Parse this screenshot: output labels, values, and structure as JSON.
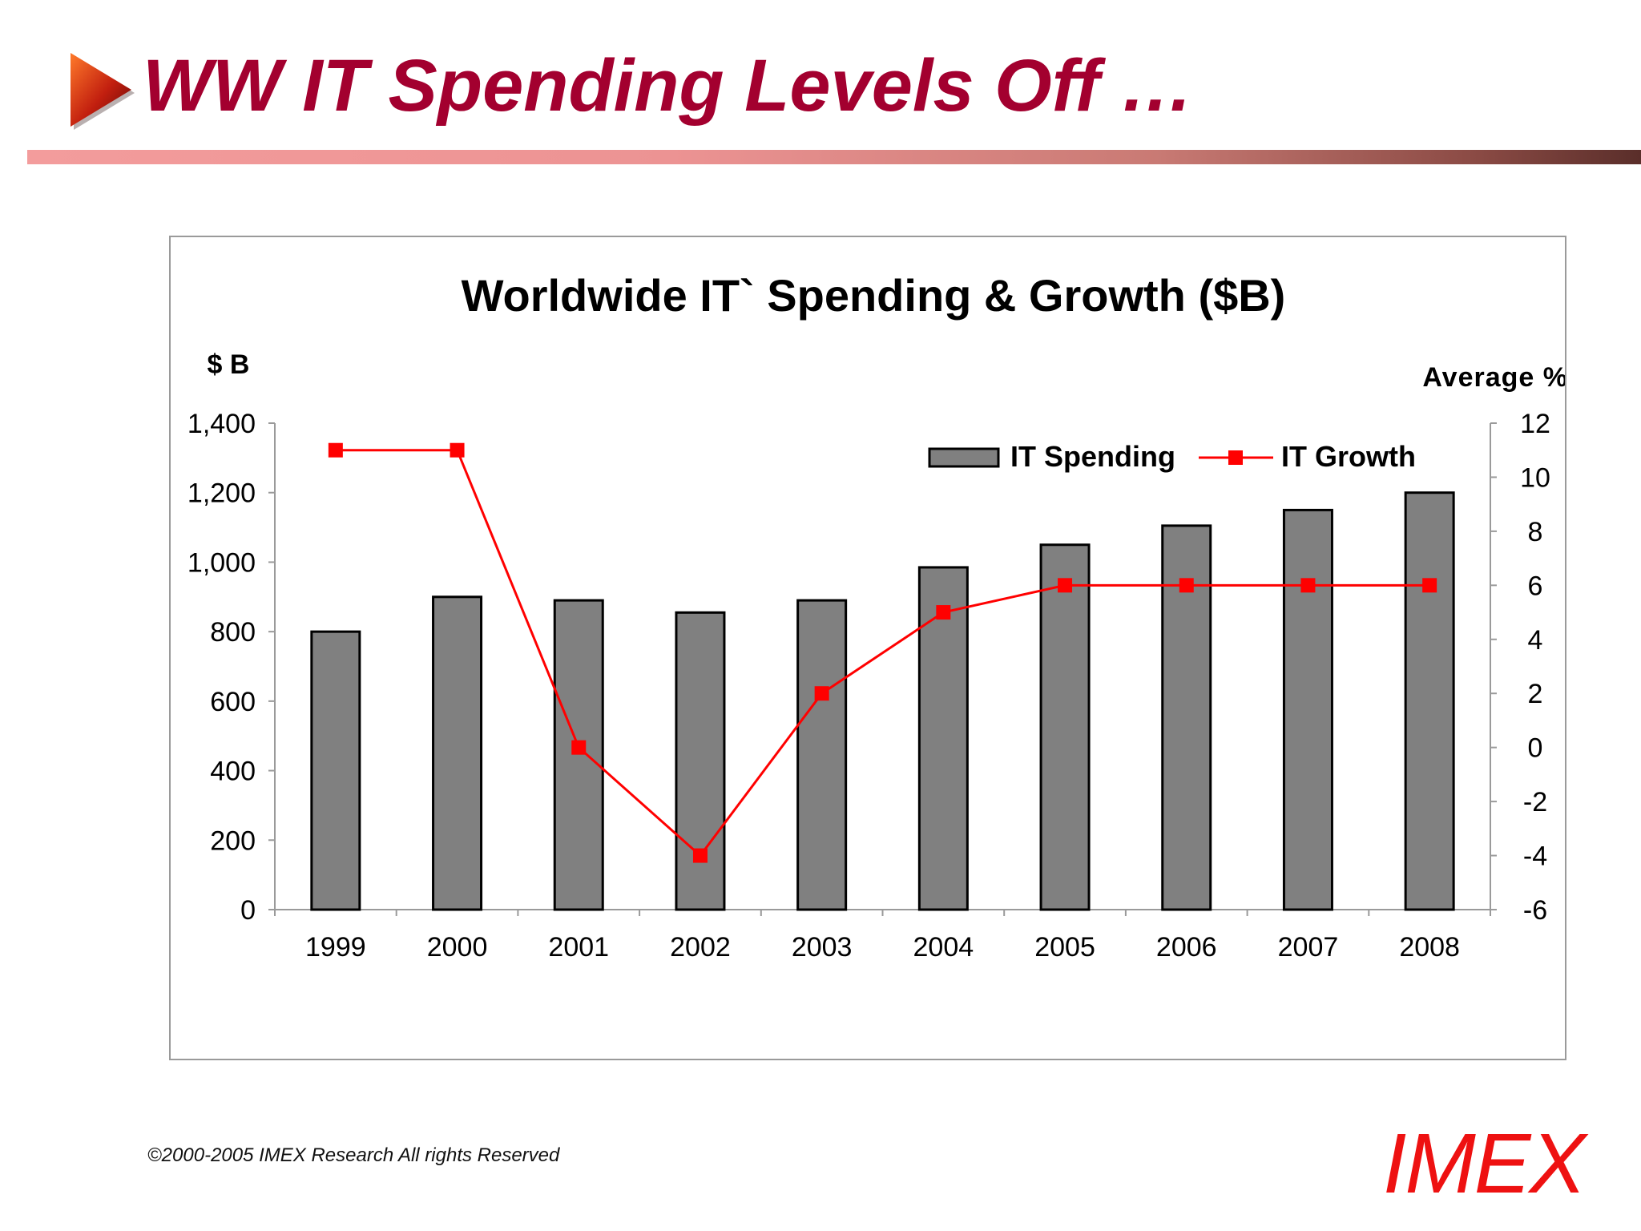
{
  "slide": {
    "title": "WW IT Spending Levels Off …",
    "copyright": "©2000-2005  IMEX Research All rights Reserved",
    "logo_text": "IMEX",
    "icons": {
      "title_arrow": "play-arrow-icon"
    },
    "colors": {
      "title": "#a3002f",
      "logo": "#ee1111",
      "chart_title": "#1065c8",
      "bars": "#808080",
      "growth_line": "#ff0000"
    }
  },
  "chart_data": {
    "type": "bar",
    "title": "Worldwide IT` Spending & Growth ($B)",
    "ylabel": "$ B",
    "y2label": "Average %",
    "categories": [
      "1999",
      "2000",
      "2001",
      "2002",
      "2003",
      "2004",
      "2005",
      "2006",
      "2007",
      "2008"
    ],
    "ylim": [
      0,
      1400
    ],
    "y2lim": [
      -6,
      12
    ],
    "yticks": [
      "0",
      "200",
      "400",
      "600",
      "800",
      "1,000",
      "1,200",
      "1,400"
    ],
    "y2ticks": [
      "-6",
      "-4",
      "-2",
      "0",
      "2",
      "4",
      "6",
      "8",
      "10",
      "12"
    ],
    "legend_position": "top-right",
    "grid": false,
    "series": [
      {
        "name": "IT Spending",
        "type": "bar",
        "axis": "left",
        "values": [
          800,
          900,
          890,
          855,
          890,
          985,
          1050,
          1105,
          1150,
          1200
        ]
      },
      {
        "name": "IT Growth",
        "type": "line",
        "axis": "right",
        "values": [
          11,
          11,
          0,
          -4,
          2,
          5,
          6,
          6,
          6,
          6
        ]
      }
    ]
  }
}
